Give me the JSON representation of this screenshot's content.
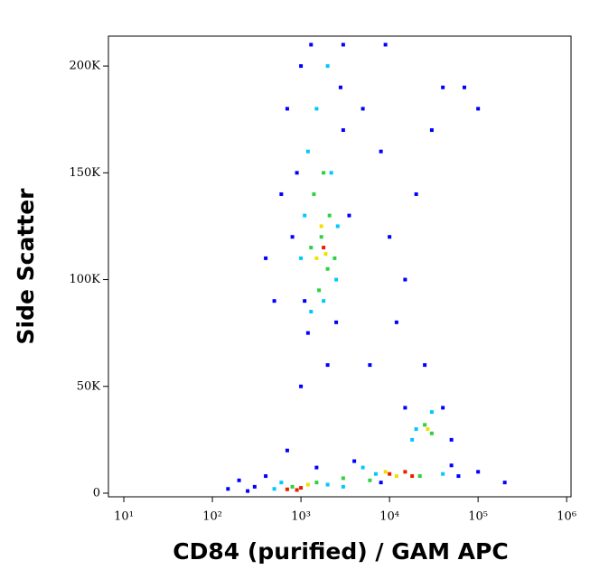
{
  "chart_data": {
    "type": "scatter",
    "xlabel": "CD84 (purified) / GAM APC",
    "ylabel": "Side Scatter",
    "xscale": "log",
    "xlim": [
      6.7,
      1120000
    ],
    "xticks": [
      {
        "value": 10,
        "label": "10¹"
      },
      {
        "value": 100,
        "label": "10²"
      },
      {
        "value": 1000,
        "label": "10³"
      },
      {
        "value": 10000,
        "label": "10⁴"
      },
      {
        "value": 100000,
        "label": "10⁵"
      },
      {
        "value": 1000000,
        "label": "10⁶"
      }
    ],
    "ylim": [
      -1700,
      214000
    ],
    "yticks": [
      0,
      {
        "value": 50000,
        "label": "50K"
      },
      {
        "value": 100000,
        "label": "100K"
      },
      {
        "value": 150000,
        "label": "150K"
      },
      {
        "value": 200000,
        "label": "200K"
      }
    ],
    "series": [
      {
        "color": "#0000ff",
        "x": [
          700,
          900,
          1000,
          1300,
          1100,
          800,
          600,
          1200,
          2500,
          3000,
          3500,
          2800,
          5000,
          8000,
          10000,
          15000,
          20000,
          30000,
          12000,
          6000,
          40000,
          25000,
          400,
          500,
          3000,
          9000,
          50000,
          60000,
          300,
          250,
          200,
          150,
          400,
          1500,
          4000,
          700,
          15000,
          40000,
          50000,
          8000,
          100000,
          200000,
          1000,
          2000,
          70000,
          100000
        ],
        "values": [
          180000,
          150000,
          200000,
          210000,
          90000,
          120000,
          140000,
          75000,
          80000,
          170000,
          130000,
          190000,
          180000,
          160000,
          120000,
          100000,
          140000,
          170000,
          80000,
          60000,
          190000,
          60000,
          110000,
          90000,
          210000,
          210000,
          13000,
          8000,
          3000,
          1000,
          6000,
          2000,
          8000,
          12000,
          15000,
          20000,
          40000,
          40000,
          25000,
          5000,
          10000,
          5000,
          50000,
          60000,
          190000,
          180000
        ]
      },
      {
        "color": "#00c8ff",
        "x": [
          1200,
          1500,
          2200,
          1000,
          2500,
          1300,
          2000,
          1800,
          600,
          2000,
          5000,
          3000,
          20000,
          30000,
          18000,
          40000,
          500,
          1100,
          2600,
          7000
        ],
        "values": [
          160000,
          180000,
          150000,
          110000,
          100000,
          85000,
          200000,
          90000,
          5000,
          4000,
          12000,
          3000,
          30000,
          38000,
          25000,
          9000,
          2000,
          130000,
          125000,
          9000
        ]
      },
      {
        "color": "#30d040",
        "x": [
          1400,
          1700,
          2000,
          1600,
          2100,
          1300,
          1800,
          800,
          3000,
          6000,
          25000,
          30000,
          1500,
          22000,
          2400
        ],
        "values": [
          140000,
          120000,
          105000,
          95000,
          130000,
          115000,
          150000,
          3000,
          7000,
          6000,
          32000,
          28000,
          5000,
          8000,
          110000
        ]
      },
      {
        "color": "#f0e000",
        "x": [
          1700,
          1900,
          1500,
          9000,
          12000,
          1200,
          27000
        ],
        "values": [
          125000,
          112000,
          110000,
          10000,
          8000,
          4000,
          30000
        ]
      },
      {
        "color": "#e82000",
        "x": [
          900,
          1000,
          700,
          10000,
          15000,
          18000,
          1800
        ],
        "values": [
          1500,
          2500,
          1800,
          9000,
          10000,
          8000,
          115000
        ]
      }
    ]
  }
}
